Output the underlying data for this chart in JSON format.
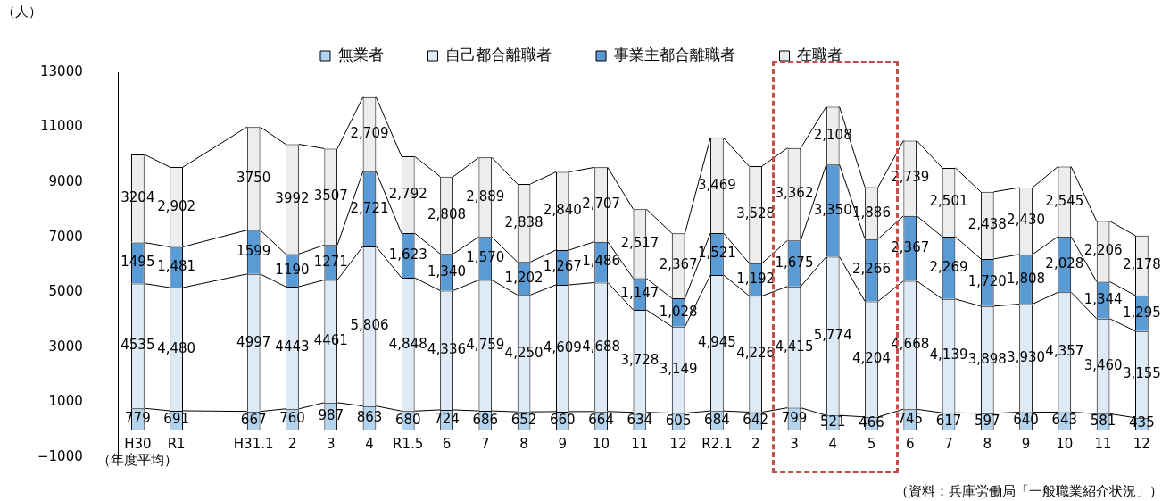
{
  "chart_data": {
    "type": "bar",
    "stacked": true,
    "legend": "top",
    "ylabel": "（人）",
    "annotations": [
      "（資料：兵庫労働局「一般職業紹介状況」）"
    ],
    "categories": [
      "H30\n（年度平均）",
      "R1",
      null,
      "H31.1",
      "2",
      "3",
      "4",
      "R1.5",
      "6",
      "7",
      "8",
      "9",
      "10",
      "11",
      "12",
      "R2.1",
      "2",
      "3",
      "4",
      "5",
      "6",
      "7",
      "8",
      "9",
      "10",
      "11",
      "12"
    ],
    "ylim": [
      -1000,
      13000
    ],
    "yticks": [
      {
        "value": -1000,
        "label": "−1000"
      },
      1000,
      3000,
      5000,
      7000,
      9000,
      11000,
      13000
    ],
    "series": [
      {
        "name": "無業者",
        "color": "#b4d4ee",
        "values": [
          779,
          691,
          null,
          667,
          760,
          987,
          863,
          680,
          724,
          686,
          652,
          660,
          664,
          634,
          605,
          684,
          642,
          799,
          521,
          466,
          745,
          617,
          597,
          640,
          643,
          581,
          435
        ],
        "value_labels": [
          "779",
          "691",
          null,
          "667",
          "760",
          "987",
          "863",
          "680",
          "724",
          "686",
          "652",
          "660",
          "664",
          "634",
          "605",
          "684",
          "642",
          "799",
          "521",
          "466",
          "745",
          "617",
          "597",
          "640",
          "643",
          "581",
          "435"
        ]
      },
      {
        "name": "自己都合離職者",
        "color": "#deebf7",
        "values": [
          4535,
          4480,
          null,
          4997,
          4443,
          4461,
          5806,
          4848,
          4336,
          4759,
          4250,
          4609,
          4688,
          3728,
          3149,
          4945,
          4226,
          4415,
          5774,
          4204,
          4668,
          4139,
          3898,
          3930,
          4357,
          3460,
          3155
        ],
        "value_labels": [
          "4535",
          "4,480",
          null,
          "4997",
          "4443",
          "4461",
          "5,806",
          "4,848",
          "4,336",
          "4,759",
          "4,250",
          "4,609",
          "4,688",
          "3,728",
          "3,149",
          "4,945",
          "4,226",
          "4,415",
          "5,774",
          "4,204",
          "4,668",
          "4,139",
          "3,898",
          "3,930",
          "4,357",
          "3,460",
          "3,155"
        ]
      },
      {
        "name": "事業主都合離職者",
        "color": "#5b9bd5",
        "values": [
          1495,
          1481,
          null,
          1599,
          1190,
          1271,
          2721,
          1623,
          1340,
          1570,
          1202,
          1267,
          1486,
          1147,
          1028,
          1521,
          1192,
          1675,
          3350,
          2266,
          2367,
          2269,
          1720,
          1808,
          2028,
          1344,
          1295
        ],
        "value_labels": [
          "1495",
          "1,481",
          null,
          "1599",
          "1190",
          "1271",
          "2,721",
          "1,623",
          "1,340",
          "1,570",
          "1,202",
          "1,267",
          "1,486",
          "1,147",
          "1,028",
          "1,521",
          "1,192",
          "1,675",
          "3,350",
          "2,266",
          "2,367",
          "2,269",
          "1,720",
          "1,808",
          "2,028",
          "1,344",
          "1,295"
        ]
      },
      {
        "name": "在職者",
        "color": "#ededed",
        "values": [
          3204,
          2902,
          null,
          3750,
          3992,
          3507,
          2709,
          2792,
          2808,
          2889,
          2838,
          2840,
          2707,
          2517,
          2367,
          3469,
          3528,
          3362,
          2108,
          1886,
          2739,
          2501,
          2438,
          2430,
          2545,
          2206,
          2178
        ],
        "value_labels": [
          "3204",
          "2,902",
          null,
          "3750",
          "3992",
          "3507",
          "2,709",
          "2,792",
          "2,808",
          "2,889",
          "2,838",
          "2,840",
          "2,707",
          "2,517",
          "2,367",
          "3,469",
          "3,528",
          "3,362",
          "2,108",
          "1,886",
          "2,739",
          "2,501",
          "2,438",
          "2,430",
          "2,545",
          "2,206",
          "2,178"
        ]
      }
    ]
  }
}
